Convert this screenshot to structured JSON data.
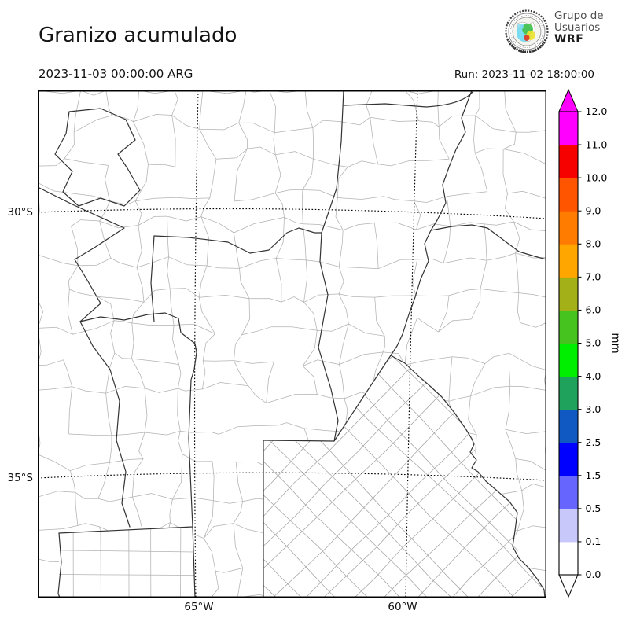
{
  "header": {
    "title": "Granizo acumulado",
    "valid_time": "2023-11-03 00:00:00 ARG",
    "run_label": "Run: 2023-11-02 18:00:00",
    "logo": {
      "line1": "Grupo de",
      "line2": "Usuarios",
      "line3": "WRF"
    }
  },
  "map": {
    "x_ticks": [
      {
        "label": "65°W"
      },
      {
        "label": "60°W"
      }
    ],
    "y_ticks": [
      {
        "label": "30°S"
      },
      {
        "label": "35°S"
      }
    ]
  },
  "colorbar": {
    "unit": "mm",
    "tick_labels": [
      "0.0",
      "0.1",
      "0.5",
      "1.5",
      "2.5",
      "3.0",
      "4.0",
      "5.0",
      "6.0",
      "7.0",
      "8.0",
      "9.0",
      "10.0",
      "11.0",
      "12.0"
    ],
    "band_colors": [
      "#ffffff",
      "#c8c8fa",
      "#6666ff",
      "#0000ff",
      "#1159c2",
      "#1fa35c",
      "#00ef00",
      "#46c31e",
      "#a4b018",
      "#ffa600",
      "#ff7c00",
      "#ff5500",
      "#f60000",
      "#ff00ff"
    ],
    "over_color": "#ff00ff",
    "under_color": "#ffffff",
    "outline_color": "#000000"
  }
}
